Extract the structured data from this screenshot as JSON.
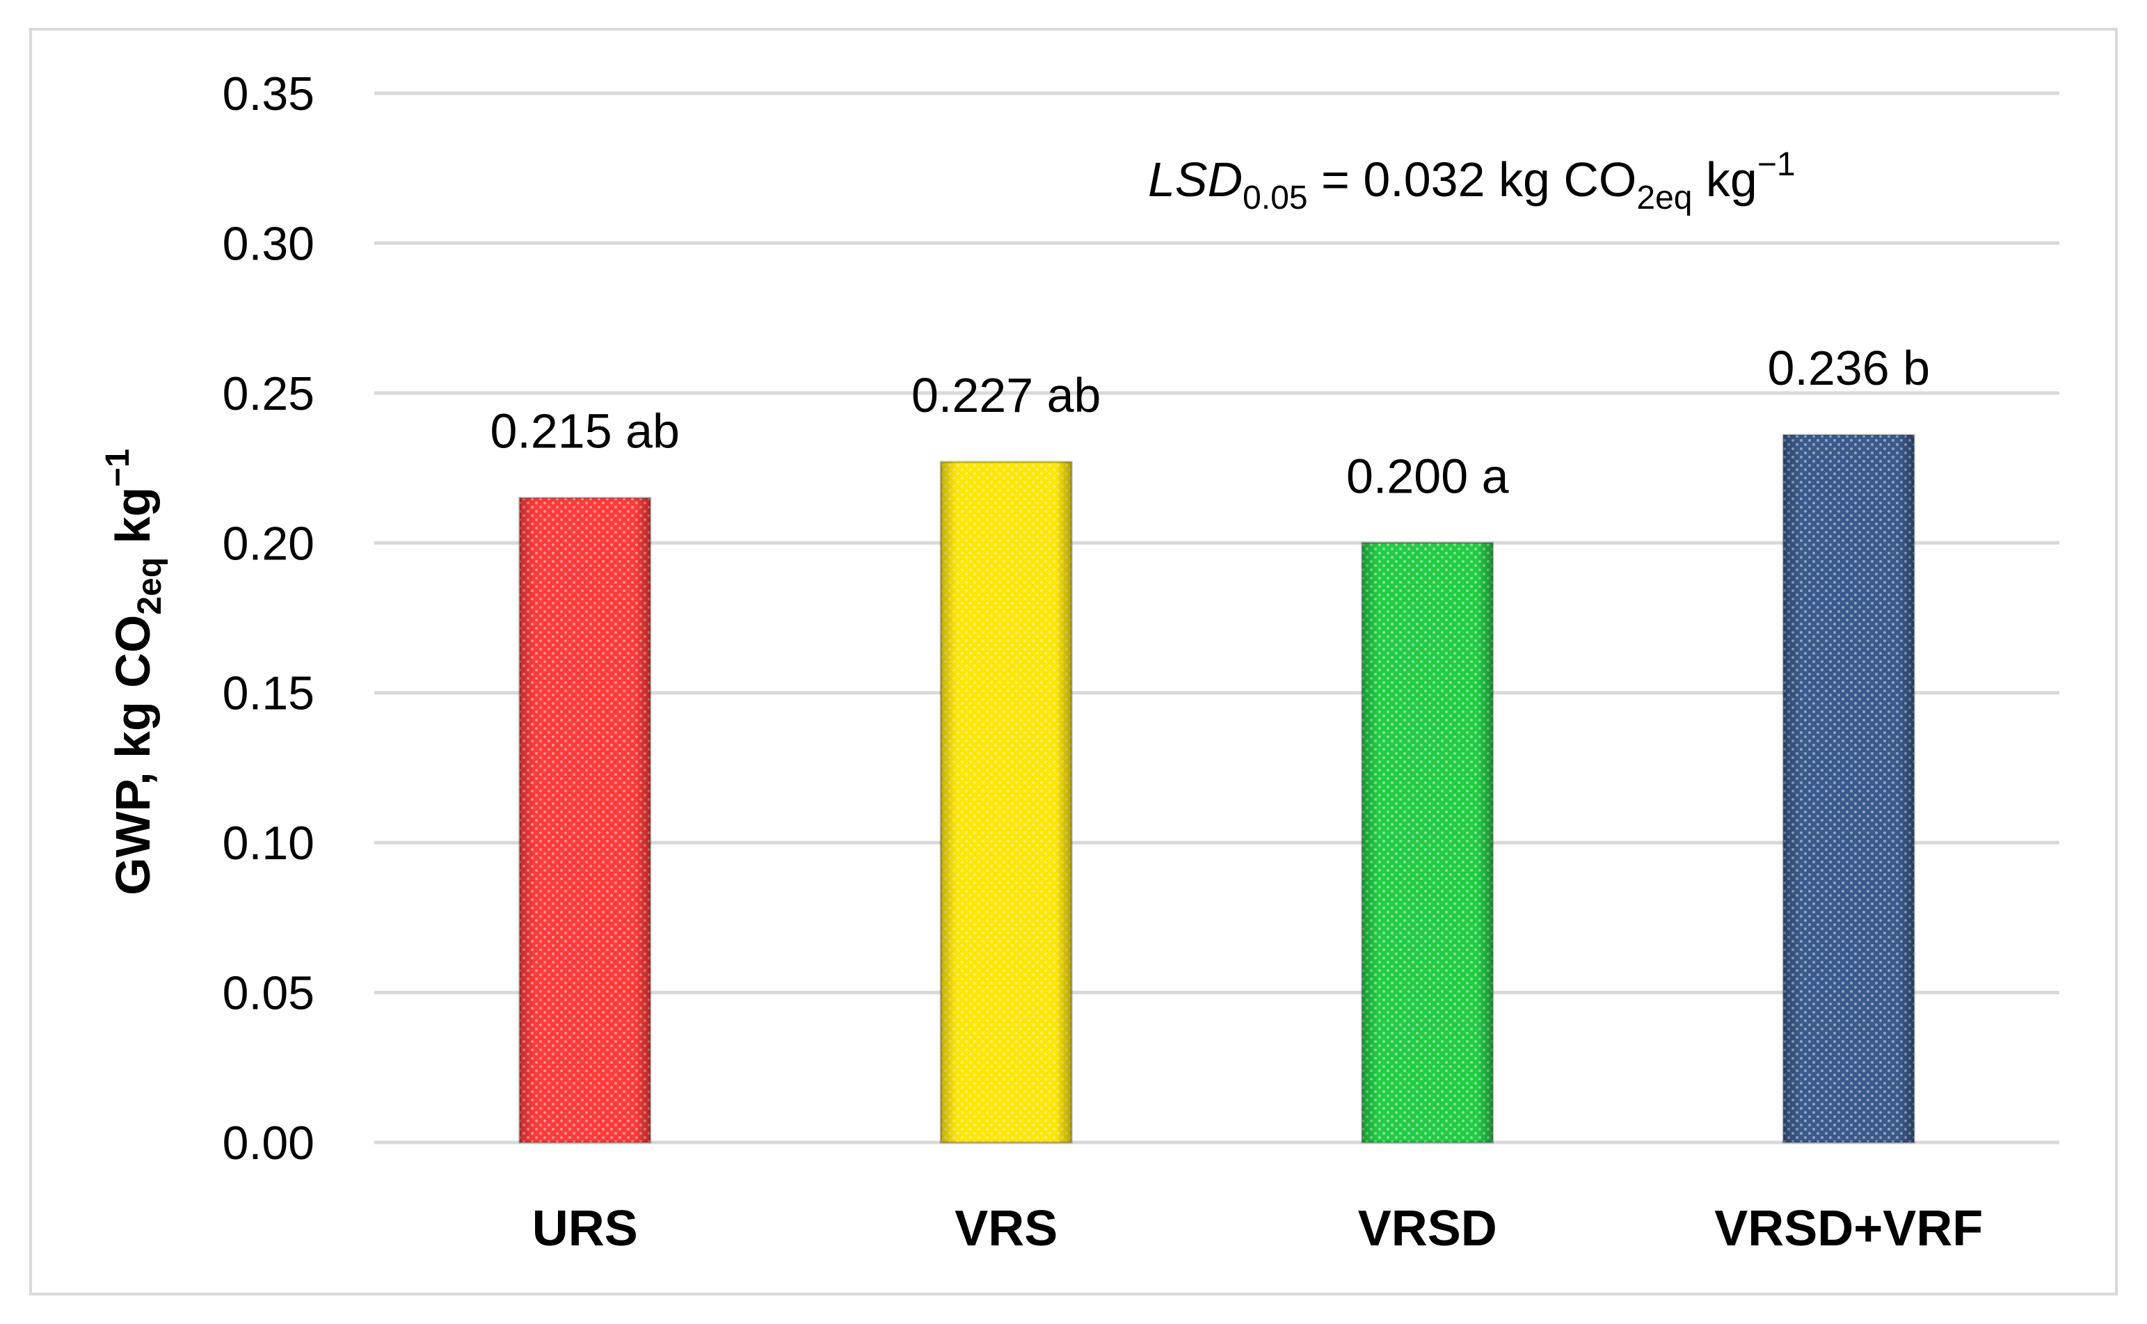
{
  "chart_data": {
    "type": "bar",
    "categories": [
      "URS",
      "VRS",
      "VRSD",
      "VRSD+VRF"
    ],
    "values": [
      0.215,
      0.227,
      0.2,
      0.236
    ],
    "data_labels": [
      "0.215 ab",
      "0.227 ab",
      "0.200 a",
      "0.236 b"
    ],
    "colors": [
      "#ff3b3b",
      "#ffe600",
      "#22cc44",
      "#3a5a8c"
    ],
    "ylim": [
      0,
      0.35
    ],
    "yticks": [
      "0.00",
      "0.05",
      "0.10",
      "0.15",
      "0.20",
      "0.25",
      "0.30",
      "0.35"
    ],
    "ylabel": {
      "main": "GWP, kg CO",
      "sub": "2eq",
      "unit": " kg",
      "sup": "−1"
    },
    "annotation": {
      "italic": "LSD",
      "italic_sub": "0.05",
      "text": " = 0.032 kg CO",
      "sub": "2eq",
      "unit": " kg",
      "sup": "−1"
    },
    "grid": true
  }
}
